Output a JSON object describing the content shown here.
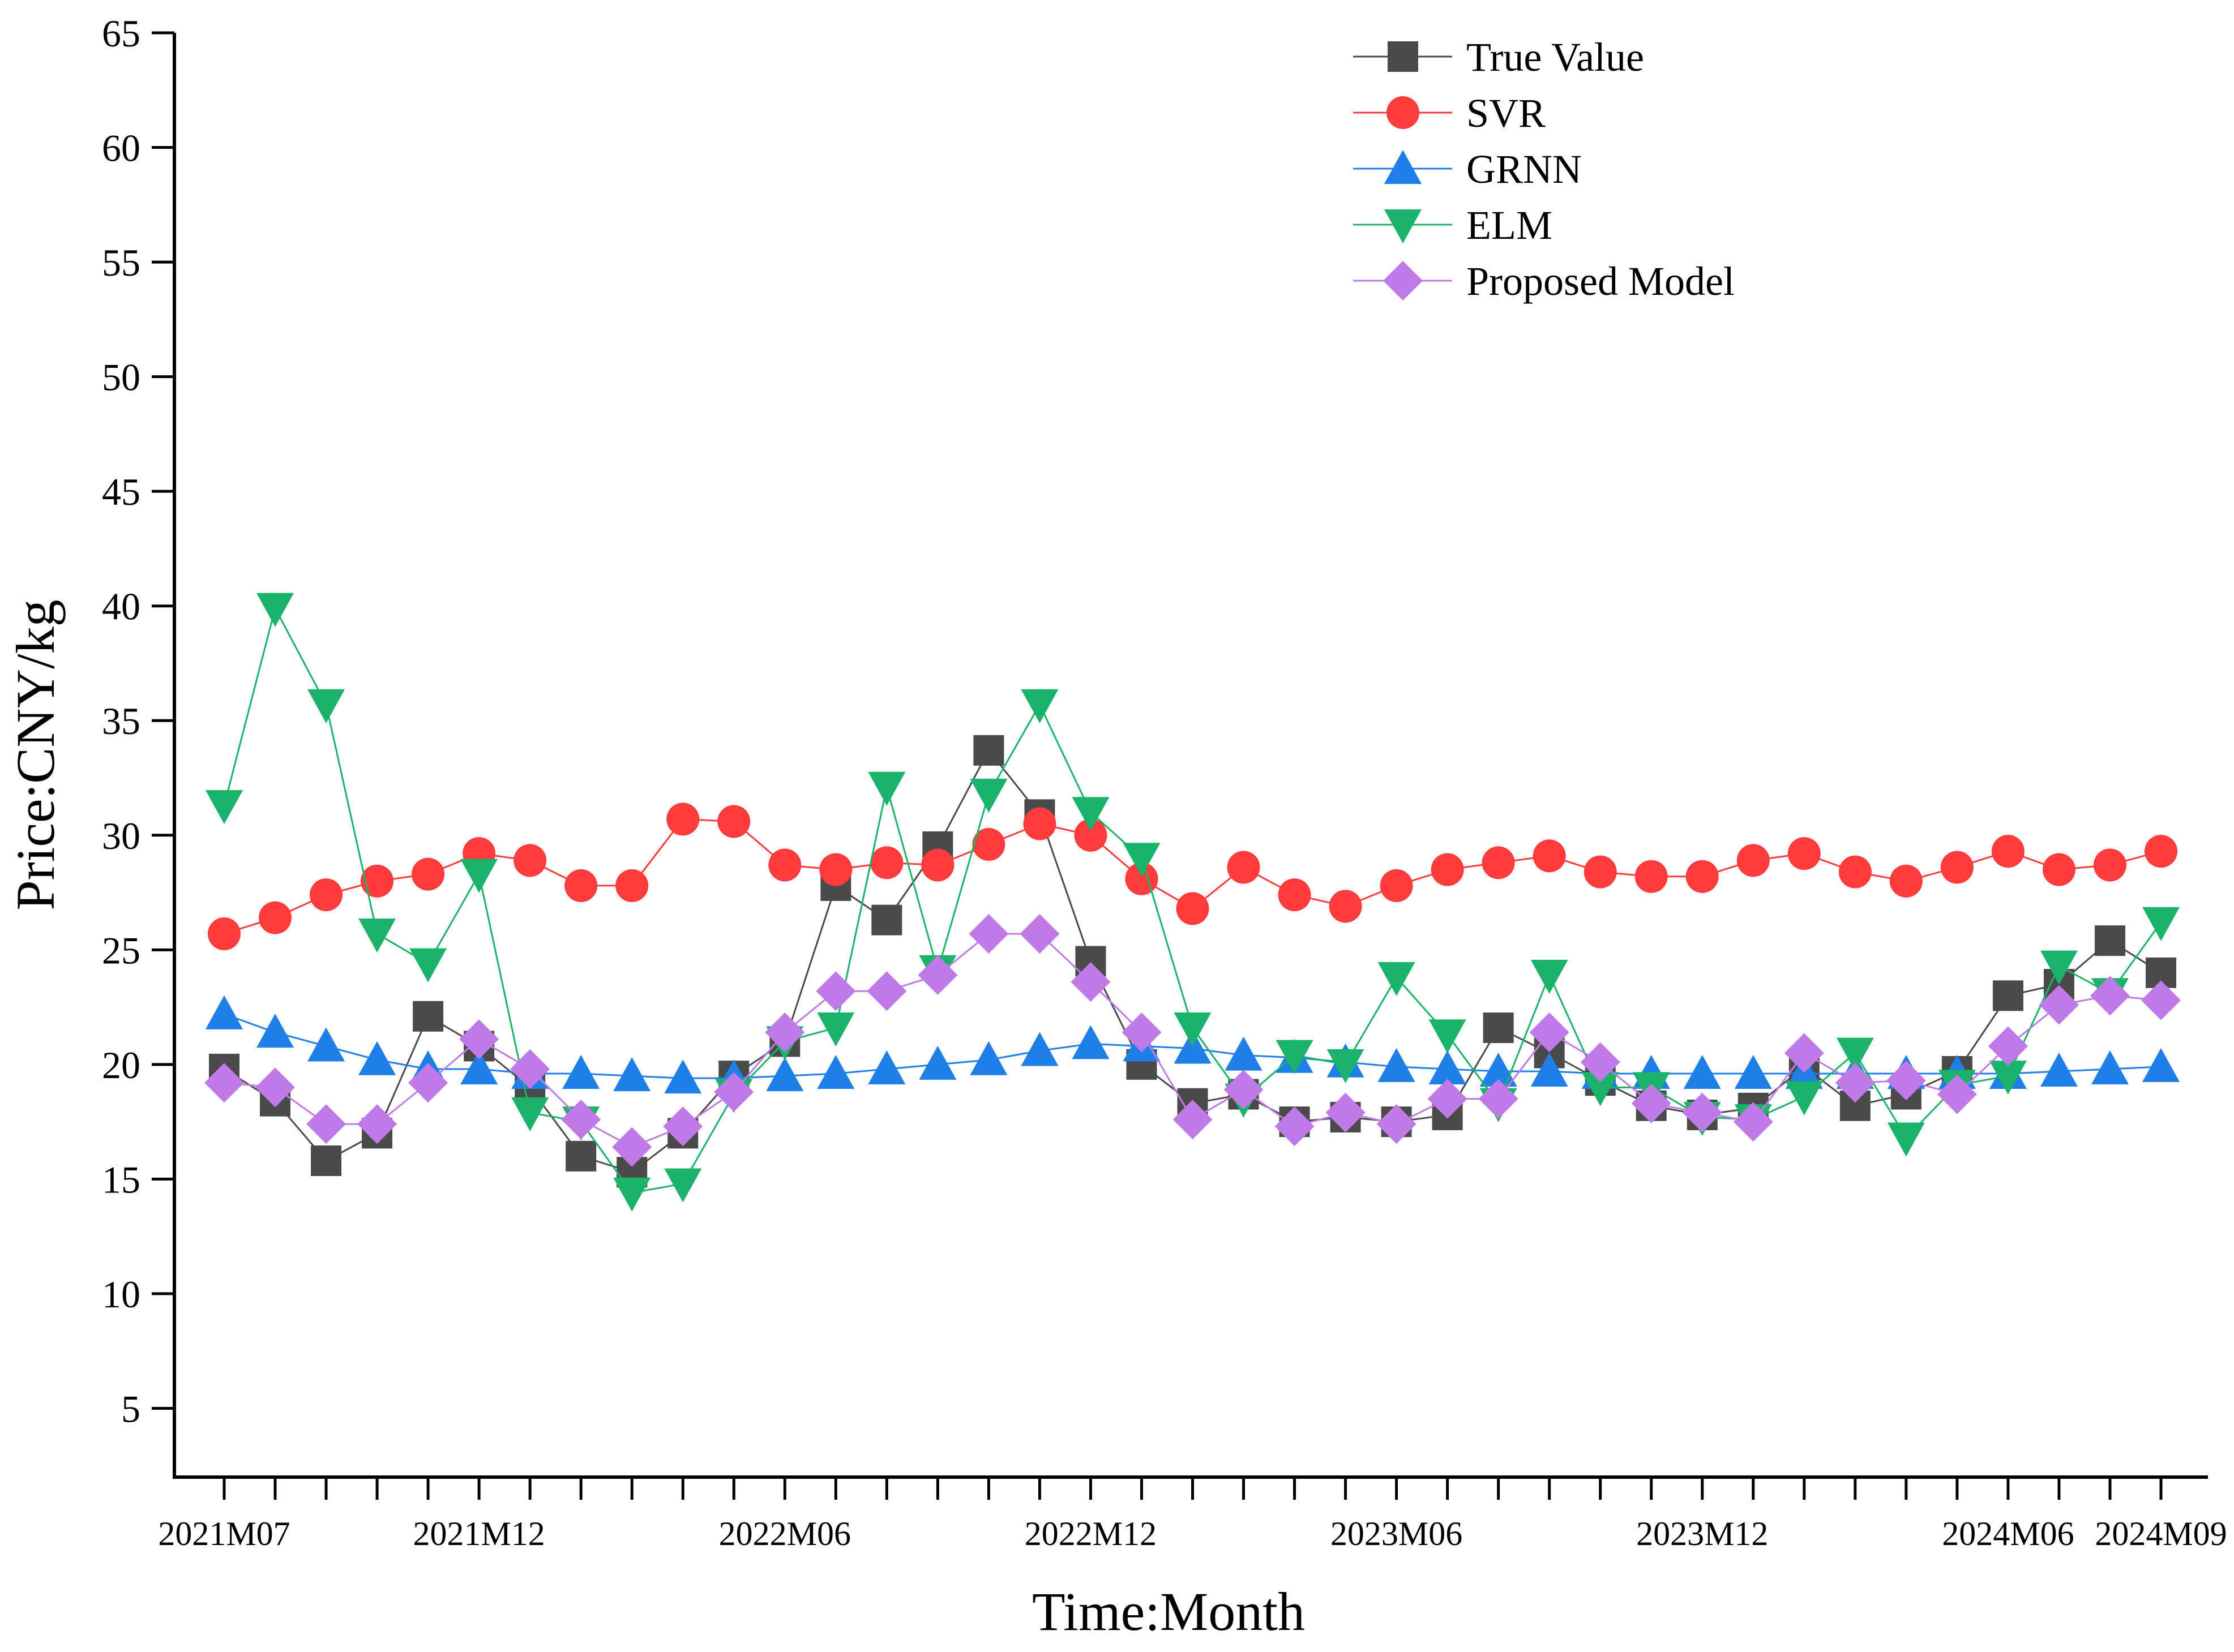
{
  "chart_data": {
    "type": "line",
    "xlabel": "Time:Month",
    "ylabel": "Price:CNY/kg",
    "ylim": [
      2,
      65
    ],
    "yticks": [
      5,
      10,
      15,
      20,
      25,
      30,
      35,
      40,
      45,
      50,
      55,
      60,
      65
    ],
    "x_count": 39,
    "x_tick_labels": [
      {
        "index": 0,
        "label": "2021M07"
      },
      {
        "index": 5,
        "label": "2021M12"
      },
      {
        "index": 11,
        "label": "2022M06"
      },
      {
        "index": 17,
        "label": "2022M12"
      },
      {
        "index": 23,
        "label": "2023M06"
      },
      {
        "index": 29,
        "label": "2023M12"
      },
      {
        "index": 35,
        "label": "2024M06"
      },
      {
        "index": 38,
        "label": "2024M09"
      }
    ],
    "legend_position": "top-right",
    "grid": false,
    "series": [
      {
        "name": "True Value",
        "color": "#4a4a4a",
        "marker": "square",
        "values": [
          19.8,
          18.4,
          15.8,
          17.0,
          22.1,
          20.8,
          19.0,
          16.0,
          15.3,
          17.0,
          19.5,
          21.0,
          27.8,
          26.3,
          29.5,
          33.7,
          30.9,
          24.5,
          20.0,
          18.3,
          18.7,
          17.5,
          17.7,
          17.5,
          17.8,
          21.6,
          20.5,
          19.3,
          18.2,
          17.8,
          18.1,
          19.9,
          18.2,
          18.7,
          19.7,
          23.0,
          23.5,
          25.4,
          24.0
        ]
      },
      {
        "name": "SVR",
        "color": "#ff3b3b",
        "marker": "circle",
        "values": [
          25.7,
          26.4,
          27.4,
          28.0,
          28.3,
          29.2,
          28.9,
          27.8,
          27.8,
          30.7,
          30.6,
          28.7,
          28.5,
          28.8,
          28.7,
          29.6,
          30.5,
          30.0,
          28.1,
          26.8,
          28.6,
          27.4,
          26.9,
          27.8,
          28.5,
          28.8,
          29.1,
          28.4,
          28.2,
          28.2,
          28.9,
          29.2,
          28.4,
          28.0,
          28.6,
          29.3,
          28.5,
          28.7,
          29.3
        ]
      },
      {
        "name": "GRNN",
        "color": "#1f7fe8",
        "marker": "triangle-up",
        "values": [
          22.2,
          21.4,
          20.8,
          20.2,
          19.8,
          19.8,
          19.6,
          19.6,
          19.5,
          19.4,
          19.4,
          19.5,
          19.6,
          19.8,
          20.0,
          20.2,
          20.6,
          20.9,
          20.8,
          20.7,
          20.4,
          20.3,
          20.1,
          19.9,
          19.8,
          19.7,
          19.7,
          19.6,
          19.6,
          19.6,
          19.6,
          19.6,
          19.6,
          19.6,
          19.6,
          19.6,
          19.7,
          19.8,
          19.9
        ]
      },
      {
        "name": "ELM",
        "color": "#19b46a",
        "marker": "triangle-down",
        "values": [
          31.3,
          39.9,
          35.7,
          25.7,
          24.4,
          28.3,
          17.9,
          17.5,
          14.4,
          14.8,
          18.7,
          21.0,
          21.6,
          32.1,
          24.1,
          31.8,
          35.7,
          31.0,
          29.0,
          21.6,
          18.5,
          20.4,
          20.0,
          23.8,
          21.3,
          18.3,
          23.9,
          19.0,
          19.0,
          17.7,
          17.6,
          18.6,
          20.5,
          16.8,
          19.1,
          19.5,
          24.3,
          23.1,
          26.2
        ]
      },
      {
        "name": "Proposed Model",
        "color": "#c07ae8",
        "marker": "diamond",
        "values": [
          19.2,
          19.0,
          17.4,
          17.4,
          19.2,
          21.1,
          19.8,
          17.6,
          16.4,
          17.3,
          18.8,
          21.4,
          23.2,
          23.2,
          23.9,
          25.7,
          25.7,
          23.6,
          21.4,
          17.6,
          18.9,
          17.3,
          17.9,
          17.4,
          18.5,
          18.5,
          21.4,
          20.1,
          18.3,
          17.9,
          17.5,
          20.5,
          19.2,
          19.3,
          18.7,
          20.8,
          22.6,
          23.0,
          22.8
        ]
      }
    ]
  }
}
